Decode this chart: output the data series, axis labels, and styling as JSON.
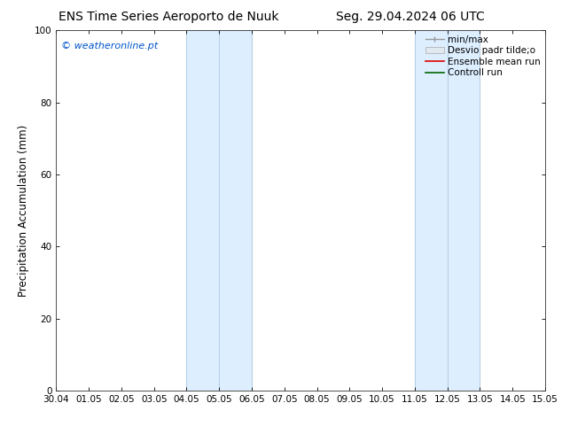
{
  "title_left": "ENS Time Series Aeroporto de Nuuk",
  "title_right": "Seg. 29.04.2024 06 UTC",
  "ylabel": "Precipitation Accumulation (mm)",
  "watermark": "© weatheronline.pt",
  "watermark_color": "#0055cc",
  "ylim": [
    0,
    100
  ],
  "yticks": [
    0,
    20,
    40,
    60,
    80,
    100
  ],
  "xtick_labels": [
    "30.04",
    "01.05",
    "02.05",
    "03.05",
    "04.05",
    "05.05",
    "06.05",
    "07.05",
    "08.05",
    "09.05",
    "10.05",
    "11.05",
    "12.05",
    "13.05",
    "14.05",
    "15.05"
  ],
  "shaded_regions": [
    {
      "xstart": 4.0,
      "xend": 5.0,
      "color": "#ddeeff"
    },
    {
      "xstart": 5.0,
      "xend": 6.0,
      "color": "#ddeeff"
    },
    {
      "xstart": 11.0,
      "xend": 12.0,
      "color": "#ddeeff"
    },
    {
      "xstart": 12.0,
      "xend": 13.0,
      "color": "#ddeeff"
    }
  ],
  "shaded_border_color": "#b8d0e8",
  "background_color": "#ffffff",
  "title_fontsize": 10,
  "tick_label_fontsize": 7.5,
  "ylabel_fontsize": 8.5,
  "legend_fontsize": 7.5
}
